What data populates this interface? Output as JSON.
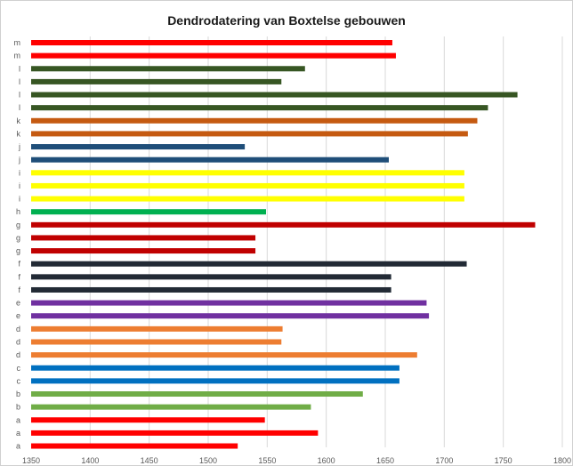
{
  "chart_data": {
    "type": "bar",
    "orientation": "horizontal",
    "title": "Dendrodatering van Boxtelse gebouwen",
    "xlabel": "",
    "ylabel": "",
    "xlim": [
      1350,
      1800
    ],
    "xticks": [
      1350,
      1400,
      1450,
      1500,
      1550,
      1600,
      1650,
      1700,
      1750,
      1800
    ],
    "grid": "vertical",
    "legend": "none",
    "baseline": 1350,
    "bars_top_to_bottom": [
      {
        "category": "m",
        "value": 1656,
        "color": "#ff0000"
      },
      {
        "category": "m",
        "value": 1659,
        "color": "#ff0000"
      },
      {
        "category": "l",
        "value": 1582,
        "color": "#375623"
      },
      {
        "category": "l",
        "value": 1562,
        "color": "#375623"
      },
      {
        "category": "l",
        "value": 1762,
        "color": "#375623"
      },
      {
        "category": "l",
        "value": 1737,
        "color": "#375623"
      },
      {
        "category": "k",
        "value": 1728,
        "color": "#c55a11"
      },
      {
        "category": "k",
        "value": 1720,
        "color": "#c55a11"
      },
      {
        "category": "j",
        "value": 1531,
        "color": "#1f4e79"
      },
      {
        "category": "j",
        "value": 1653,
        "color": "#1f4e79"
      },
      {
        "category": "i",
        "value": 1717,
        "color": "#ffff00"
      },
      {
        "category": "i",
        "value": 1717,
        "color": "#ffff00"
      },
      {
        "category": "i",
        "value": 1717,
        "color": "#ffff00"
      },
      {
        "category": "h",
        "value": 1549,
        "color": "#00b050"
      },
      {
        "category": "g",
        "value": 1777,
        "color": "#c00000"
      },
      {
        "category": "g",
        "value": 1540,
        "color": "#c00000"
      },
      {
        "category": "g",
        "value": 1540,
        "color": "#c00000"
      },
      {
        "category": "f",
        "value": 1719,
        "color": "#222a35"
      },
      {
        "category": "f",
        "value": 1655,
        "color": "#222a35"
      },
      {
        "category": "f",
        "value": 1655,
        "color": "#222a35"
      },
      {
        "category": "e",
        "value": 1685,
        "color": "#7030a0"
      },
      {
        "category": "e",
        "value": 1687,
        "color": "#7030a0"
      },
      {
        "category": "d",
        "value": 1563,
        "color": "#ed7d31"
      },
      {
        "category": "d",
        "value": 1562,
        "color": "#ed7d31"
      },
      {
        "category": "d",
        "value": 1677,
        "color": "#ed7d31"
      },
      {
        "category": "c",
        "value": 1662,
        "color": "#0070c0"
      },
      {
        "category": "c",
        "value": 1662,
        "color": "#0070c0"
      },
      {
        "category": "b",
        "value": 1631,
        "color": "#70ad47"
      },
      {
        "category": "b",
        "value": 1587,
        "color": "#70ad47"
      },
      {
        "category": "a",
        "value": 1548,
        "color": "#ff0000"
      },
      {
        "category": "a",
        "value": 1593,
        "color": "#ff0000"
      },
      {
        "category": "a",
        "value": 1525,
        "color": "#ff0000"
      }
    ]
  },
  "colors": {
    "background": "#ffffff",
    "gridline": "#d9d9d9",
    "text": "#595959"
  }
}
